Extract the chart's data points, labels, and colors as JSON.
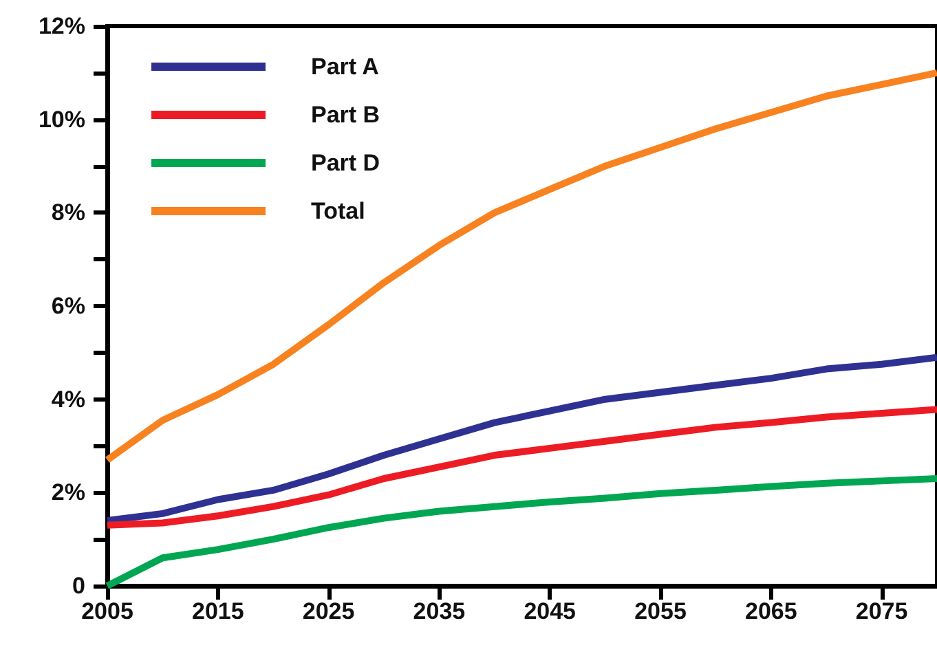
{
  "chart_data": {
    "type": "line",
    "x": [
      2005,
      2010,
      2015,
      2020,
      2025,
      2030,
      2035,
      2040,
      2045,
      2050,
      2055,
      2060,
      2065,
      2070,
      2075,
      2080
    ],
    "series": [
      {
        "name": "Part A",
        "color": "#2e3192",
        "values": [
          1.4,
          1.55,
          1.85,
          2.05,
          2.4,
          2.8,
          3.15,
          3.5,
          3.75,
          4.0,
          4.15,
          4.3,
          4.45,
          4.65,
          4.75,
          4.9
        ]
      },
      {
        "name": "Part B",
        "color": "#ed1c24",
        "values": [
          1.3,
          1.35,
          1.5,
          1.7,
          1.95,
          2.3,
          2.55,
          2.8,
          2.95,
          3.1,
          3.25,
          3.4,
          3.5,
          3.62,
          3.7,
          3.78
        ]
      },
      {
        "name": "Part D",
        "color": "#00a651",
        "values": [
          0,
          0.6,
          0.78,
          1.0,
          1.25,
          1.45,
          1.6,
          1.7,
          1.8,
          1.88,
          1.98,
          2.05,
          2.13,
          2.2,
          2.25,
          2.3
        ]
      },
      {
        "name": "Total",
        "color": "#f7821f",
        "values": [
          2.7,
          3.55,
          4.1,
          4.75,
          5.6,
          6.5,
          7.3,
          8.0,
          8.5,
          9.0,
          9.4,
          9.8,
          10.15,
          10.5,
          10.75,
          11.0
        ]
      }
    ],
    "xlim": [
      2005,
      2080
    ],
    "xticks": [
      2005,
      2015,
      2025,
      2035,
      2045,
      2055,
      2065,
      2075
    ],
    "ylim": [
      0,
      12
    ],
    "yticks": [
      {
        "value": 0,
        "label": "0"
      },
      {
        "value": 1,
        "label": null
      },
      {
        "value": 2,
        "label": "2%"
      },
      {
        "value": 3,
        "label": null
      },
      {
        "value": 4,
        "label": "4%"
      },
      {
        "value": 5,
        "label": null
      },
      {
        "value": 6,
        "label": "6%"
      },
      {
        "value": 7,
        "label": null
      },
      {
        "value": 8,
        "label": "8%"
      },
      {
        "value": 9,
        "label": null
      },
      {
        "value": 10,
        "label": "10%"
      },
      {
        "value": 11,
        "label": null
      },
      {
        "value": 12,
        "label": "12%"
      }
    ],
    "grid": false,
    "legend": "top left",
    "marker": "none",
    "line_style": "solid"
  }
}
